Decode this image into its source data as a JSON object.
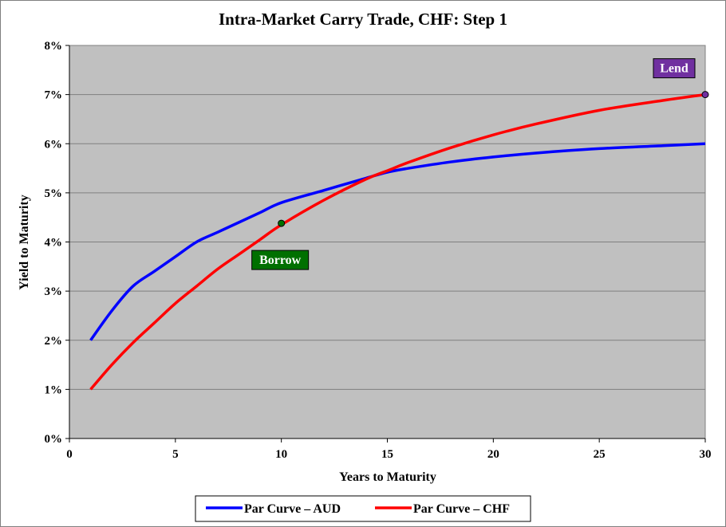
{
  "chart_data": {
    "type": "line",
    "title": "Intra-Market Carry Trade, CHF: Step 1",
    "xlabel": "Years to Maturity",
    "ylabel": "Yield to Maturity",
    "xlim": [
      0,
      30
    ],
    "ylim": [
      0,
      8
    ],
    "xticks": [
      "0",
      "5",
      "10",
      "15",
      "20",
      "25",
      "30"
    ],
    "yticks": [
      "0%",
      "1%",
      "2%",
      "3%",
      "4%",
      "5%",
      "6%",
      "7%",
      "8%"
    ],
    "grid": true,
    "legend_position": "bottom",
    "series": [
      {
        "name": "Par Curve – AUD",
        "color": "#0000ff",
        "x": [
          1,
          2,
          3,
          4,
          5,
          6,
          7,
          8,
          9,
          10,
          12,
          14,
          15,
          16,
          18,
          20,
          22,
          25,
          28,
          30
        ],
        "y": [
          2.0,
          2.6,
          3.1,
          3.4,
          3.7,
          4.0,
          4.2,
          4.4,
          4.6,
          4.8,
          5.05,
          5.3,
          5.42,
          5.5,
          5.63,
          5.73,
          5.81,
          5.9,
          5.96,
          6.0
        ]
      },
      {
        "name": "Par Curve – CHF",
        "color": "#ff0000",
        "x": [
          1,
          2,
          3,
          4,
          5,
          6,
          7,
          8,
          9,
          10,
          12,
          14,
          15,
          16,
          18,
          20,
          22,
          25,
          28,
          30
        ],
        "y": [
          1.0,
          1.5,
          1.95,
          2.35,
          2.75,
          3.1,
          3.45,
          3.75,
          4.05,
          4.35,
          4.85,
          5.28,
          5.45,
          5.62,
          5.92,
          6.18,
          6.4,
          6.68,
          6.88,
          7.0
        ]
      }
    ],
    "annotations": [
      {
        "label": "Borrow",
        "x": 10,
        "y": 4.38,
        "color": "#007000"
      },
      {
        "label": "Lend",
        "x": 30,
        "y": 7.0,
        "color": "#7030a0"
      }
    ]
  }
}
